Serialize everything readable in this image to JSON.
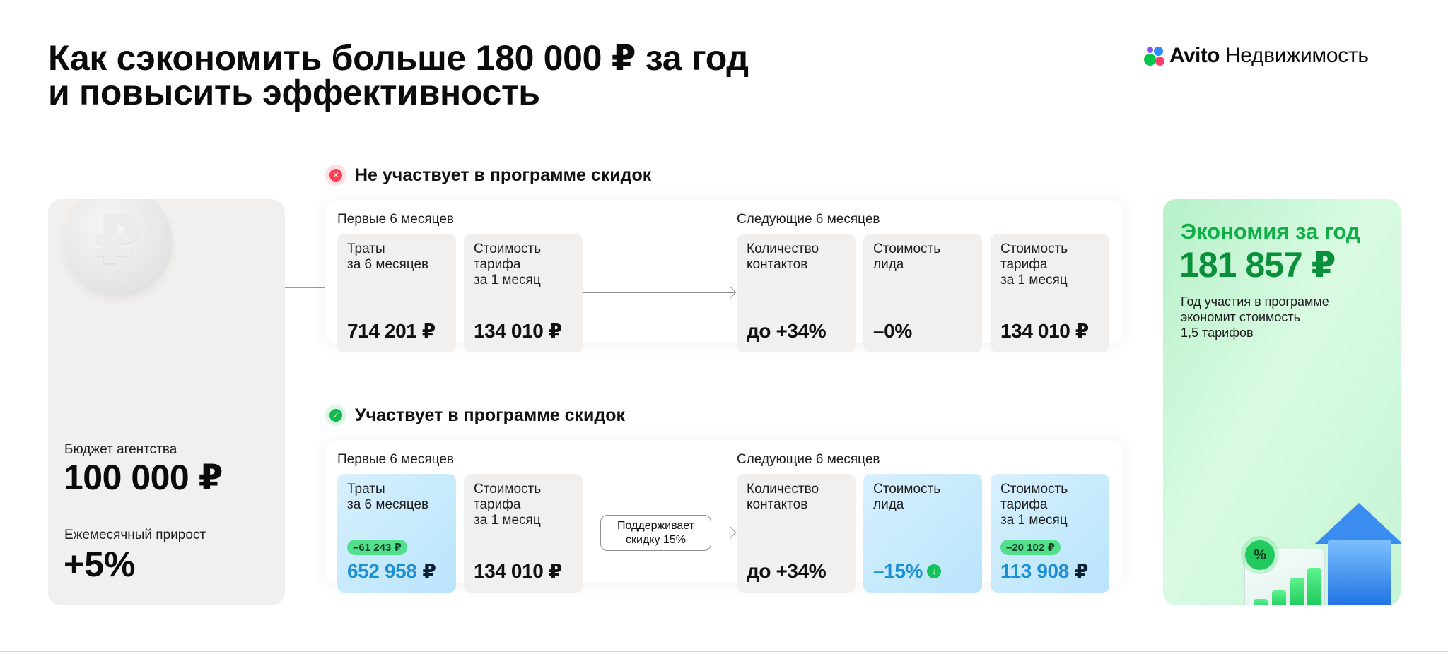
{
  "header": {
    "title_line1": "Как сэкономить больше 180 000 ₽ за год",
    "title_line2": "и повысить эффективность"
  },
  "logo": {
    "brand": "Avito",
    "product": "Недвижимость",
    "dot_colors": [
      "#00c74b",
      "#2b8cff",
      "#ff3b6b",
      "#8a4dff"
    ]
  },
  "agency": {
    "coin_icon": "ruble-coin-icon",
    "coin_symbol": "₽",
    "budget_label": "Бюджет агентства",
    "budget_value": "100 000 ₽",
    "growth_label": "Ежемесячный прирост",
    "growth_value": "+5%"
  },
  "without_program": {
    "status_icon": "close-circle-icon",
    "status_color": "#ff3d55",
    "title": "Не участвует в программе скидок",
    "first_period_label": "Первые 6 месяцев",
    "next_period_label": "Следующие 6 месяцев",
    "tiles": [
      {
        "label": [
          "Траты",
          "за 6 месяцев"
        ],
        "value": "714 201 ₽"
      },
      {
        "label": [
          "Стоимость",
          "тарифа",
          "за 1 месяц"
        ],
        "value": "134 010 ₽"
      },
      {
        "label": [
          "Количество",
          "контактов"
        ],
        "value": "до +34%"
      },
      {
        "label": [
          "Стоимость",
          "лида"
        ],
        "value": "–0%"
      },
      {
        "label": [
          "Стоимость",
          "тарифа",
          "за 1 месяц"
        ],
        "value": "134 010 ₽"
      }
    ]
  },
  "with_program": {
    "status_icon": "check-circle-icon",
    "status_color": "#10b84e",
    "title": "Участвует в программе скидок",
    "first_period_label": "Первые 6 месяцев",
    "next_period_label": "Следующие 6 месяцев",
    "support_line1": "Поддерживает",
    "support_line2": "скидку 15%",
    "tiles": [
      {
        "label": [
          "Траты",
          "за 6 месяцев"
        ],
        "pill": "–61 243 ₽",
        "value_main": "652 958",
        "value_suffix": "₽"
      },
      {
        "label": [
          "Стоимость",
          "тарифа",
          "за 1 месяц"
        ],
        "value": "134 010 ₽"
      },
      {
        "label": [
          "Количество",
          "контактов"
        ],
        "value": "до +34%"
      },
      {
        "label": [
          "Стоимость",
          "лида"
        ],
        "value_main": "–15%",
        "icon": "arrow-down-icon"
      },
      {
        "label": [
          "Стоимость",
          "тарифа",
          "за 1 месяц"
        ],
        "pill": "–20 102 ₽",
        "value_main": "113 908",
        "value_suffix": "₽"
      }
    ]
  },
  "savings": {
    "title": "Экономия за год",
    "value": "181 857 ₽",
    "desc_line1": "Год участия в программе",
    "desc_line2": "экономит стоимость",
    "desc_line3": "1,5 тарифов",
    "badge": "%",
    "accent": "#0fae46"
  }
}
